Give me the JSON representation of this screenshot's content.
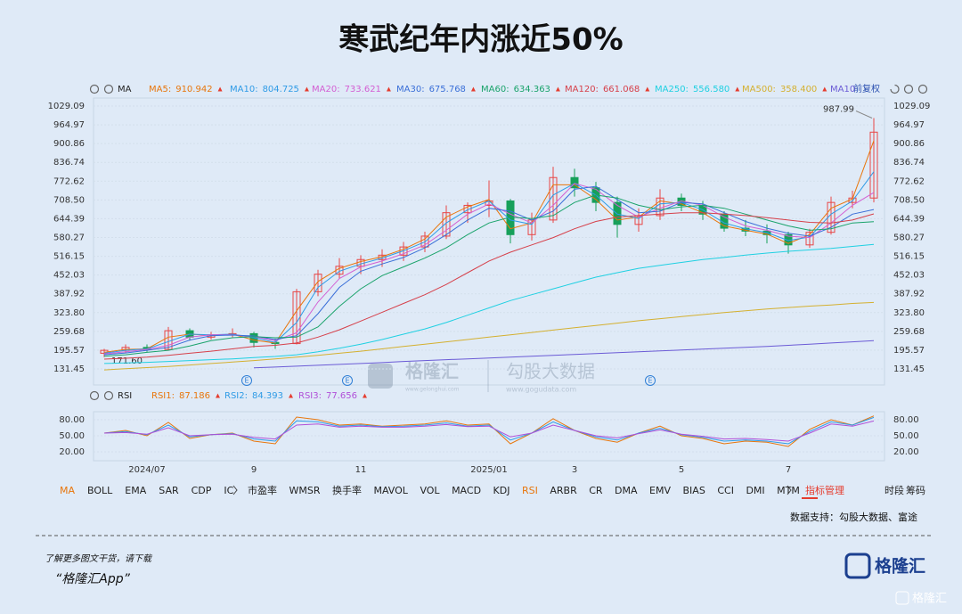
{
  "title": "寒武纪年内涨近50%",
  "restore_label": "前复权",
  "chart_data": [
    {
      "type": "candlestick",
      "legend_label": "MA",
      "up_color": "#e84545",
      "down_color": "#17a05a",
      "grid": true,
      "ylim": [
        76.7,
        1056.5
      ],
      "yticks": [
        1029.09,
        964.97,
        900.86,
        836.74,
        772.62,
        {
          "value": 708.5,
          "label": "708.50"
        },
        644.39,
        580.27,
        516.15,
        452.03,
        387.92,
        {
          "value": 323.8,
          "label": "323.80"
        },
        259.68,
        195.57,
        131.45
      ],
      "open": [
        185,
        195,
        205,
        198,
        262,
        240,
        248,
        252,
        222,
        218,
        395,
        455,
        482,
        505,
        520,
        548,
        585,
        665,
        690,
        705,
        590,
        640,
        785,
        750,
        700,
        625,
        655,
        715,
        690,
        660,
        612,
        602,
        590,
        555,
        598,
        700,
        715
      ],
      "high": [
        200,
        215,
        215,
        275,
        270,
        258,
        270,
        258,
        235,
        405,
        470,
        510,
        520,
        540,
        565,
        600,
        690,
        700,
        775,
        712,
        665,
        822,
        815,
        770,
        720,
        680,
        745,
        730,
        705,
        670,
        640,
        625,
        600,
        610,
        720,
        740,
        987.99
      ],
      "low": [
        171.6,
        185,
        190,
        195,
        228,
        232,
        240,
        205,
        200,
        215,
        380,
        440,
        455,
        480,
        500,
        530,
        575,
        630,
        650,
        560,
        570,
        630,
        720,
        670,
        580,
        600,
        640,
        670,
        640,
        600,
        585,
        560,
        525,
        545,
        590,
        680,
        700
      ],
      "close": [
        195,
        205,
        198,
        262,
        240,
        248,
        252,
        222,
        218,
        395,
        455,
        482,
        505,
        520,
        548,
        585,
        665,
        690,
        705,
        590,
        640,
        785,
        750,
        700,
        625,
        655,
        715,
        690,
        660,
        612,
        602,
        590,
        555,
        598,
        700,
        715,
        940
      ],
      "high_label": "987.99",
      "low_label": "171.60",
      "event_label": "E",
      "series": [
        {
          "name": "MA5:",
          "legend_value": 910.942,
          "color": "#e8760c",
          "values": [
            188,
            198,
            200,
            240,
            250,
            246,
            250,
            230,
            220,
            330,
            430,
            475,
            498,
            515,
            540,
            575,
            650,
            685,
            710,
            610,
            630,
            760,
            760,
            710,
            640,
            650,
            705,
            695,
            665,
            620,
            605,
            592,
            560,
            590,
            680,
            712,
            910.942
          ]
        },
        {
          "name": "MA10:",
          "legend_value": 804.725,
          "color": "#2f9be6",
          "values": [
            185,
            195,
            200,
            225,
            250,
            248,
            250,
            238,
            222,
            290,
            410,
            465,
            490,
            510,
            535,
            565,
            630,
            675,
            705,
            640,
            625,
            725,
            765,
            725,
            660,
            645,
            695,
            700,
            675,
            630,
            610,
            597,
            570,
            582,
            660,
            705,
            804.725
          ]
        },
        {
          "name": "MA20:",
          "legend_value": 733.621,
          "color": "#d35fd3",
          "values": [
            183,
            190,
            198,
            212,
            240,
            248,
            248,
            242,
            228,
            255,
            360,
            440,
            480,
            500,
            525,
            555,
            605,
            660,
            695,
            660,
            630,
            690,
            765,
            745,
            690,
            650,
            680,
            705,
            690,
            650,
            620,
            605,
            585,
            580,
            630,
            690,
            733.621
          ]
        },
        {
          "name": "MA30:",
          "legend_value": 675.768,
          "color": "#3a6fd8",
          "values": [
            180,
            186,
            195,
            205,
            230,
            245,
            247,
            244,
            232,
            245,
            320,
            410,
            465,
            490,
            512,
            545,
            590,
            640,
            680,
            670,
            640,
            670,
            745,
            755,
            710,
            665,
            670,
            700,
            695,
            665,
            635,
            612,
            595,
            585,
            615,
            660,
            675.768
          ]
        },
        {
          "name": "MA60:",
          "legend_value": 634.363,
          "color": "#1aa36b",
          "values": [
            175,
            180,
            188,
            195,
            210,
            228,
            238,
            242,
            238,
            240,
            275,
            345,
            405,
            450,
            480,
            510,
            545,
            590,
            630,
            650,
            645,
            655,
            700,
            725,
            715,
            690,
            675,
            685,
            690,
            680,
            660,
            640,
            620,
            605,
            610,
            630,
            634.363
          ]
        },
        {
          "name": "MA120:",
          "legend_value": 661.068,
          "color": "#d6404a",
          "values": [
            165,
            168,
            172,
            178,
            185,
            192,
            200,
            208,
            212,
            220,
            240,
            265,
            295,
            325,
            355,
            385,
            420,
            460,
            500,
            530,
            555,
            580,
            610,
            635,
            650,
            655,
            660,
            665,
            665,
            660,
            655,
            648,
            640,
            632,
            630,
            640,
            661.068
          ]
        },
        {
          "name": "MA250:",
          "legend_value": {
            "value": 556.58,
            "label": "556.580"
          },
          "color": "#1fd0e2",
          "values": [
            150,
            152,
            154,
            157,
            160,
            163,
            166,
            170,
            174,
            180,
            190,
            202,
            216,
            232,
            250,
            268,
            290,
            315,
            340,
            365,
            385,
            405,
            425,
            445,
            460,
            475,
            485,
            495,
            505,
            512,
            520,
            527,
            533,
            538,
            543,
            550,
            556.58
          ]
        },
        {
          "name": "MA500:",
          "legend_value": {
            "value": 358.4,
            "label": "358.400"
          },
          "color": "#d4b030",
          "values": [
            128,
            132,
            136,
            140,
            145,
            150,
            155,
            160,
            166,
            172,
            178,
            185,
            192,
            200,
            208,
            216,
            224,
            232,
            240,
            248,
            256,
            264,
            272,
            280,
            288,
            296,
            303,
            310,
            317,
            324,
            330,
            336,
            341,
            346,
            350,
            355,
            358.4
          ]
        },
        {
          "name": "MA10",
          "color": "#6b5bd6",
          "values": [
            null,
            null,
            null,
            null,
            null,
            null,
            null,
            135,
            138,
            141,
            144,
            147,
            150,
            153,
            157,
            160,
            163,
            166,
            169,
            172,
            175,
            178,
            181,
            184,
            187,
            190,
            193,
            196,
            199,
            202,
            205,
            208,
            212,
            216,
            220,
            224,
            228
          ]
        }
      ]
    },
    {
      "type": "line",
      "legend_label": "RSI",
      "grid": true,
      "ylim": [
        3.3,
        95
      ],
      "yticks": [
        {
          "value": 80,
          "label": "80.00"
        },
        {
          "value": 50,
          "label": "50.00"
        },
        {
          "value": 20,
          "label": "20.00"
        }
      ],
      "categories": [
        null,
        null,
        "2024/07",
        null,
        null,
        null,
        null,
        "9",
        null,
        null,
        null,
        null,
        "11",
        null,
        null,
        null,
        null,
        null,
        "2025/01",
        null,
        null,
        null,
        "3",
        null,
        null,
        null,
        null,
        "5",
        null,
        null,
        null,
        null,
        "7",
        null,
        null,
        null,
        null
      ],
      "series": [
        {
          "name": "RSI1:",
          "color": "#e8760c",
          "values": [
            55,
            60,
            50,
            75,
            45,
            52,
            55,
            40,
            35,
            85,
            80,
            70,
            72,
            68,
            70,
            72,
            78,
            70,
            72,
            35,
            55,
            82,
            60,
            45,
            38,
            55,
            68,
            50,
            45,
            35,
            40,
            38,
            30,
            62,
            80,
            70,
            87.186
          ]
        },
        {
          "name": "RSI2:",
          "color": "#2f9be6",
          "values": [
            55,
            58,
            52,
            70,
            48,
            52,
            54,
            44,
            40,
            78,
            76,
            68,
            70,
            67,
            68,
            70,
            74,
            68,
            70,
            42,
            55,
            76,
            60,
            48,
            42,
            55,
            64,
            52,
            47,
            40,
            42,
            40,
            35,
            58,
            76,
            70,
            84.393
          ]
        },
        {
          "name": "RSI3:",
          "color": "#b04fd8",
          "values": [
            55,
            56,
            53,
            65,
            50,
            52,
            53,
            47,
            44,
            70,
            72,
            66,
            68,
            66,
            66,
            68,
            71,
            67,
            68,
            48,
            55,
            70,
            60,
            50,
            46,
            54,
            61,
            53,
            49,
            44,
            45,
            43,
            40,
            55,
            72,
            68,
            77.656
          ]
        }
      ]
    }
  ],
  "indicator_tabs": [
    [
      {
        "label": "MA",
        "active": true
      },
      {
        "label": "BOLL"
      },
      {
        "label": "EMA"
      },
      {
        "label": "SAR"
      },
      {
        "label": "CDP"
      },
      {
        "label": "IC"
      }
    ],
    [
      {
        "label": "市盈率"
      },
      {
        "label": "WMSR"
      },
      {
        "label": "换手率"
      },
      {
        "label": "MAVOL"
      },
      {
        "label": "VOL"
      },
      {
        "label": "MACD"
      },
      {
        "label": "KDJ"
      },
      {
        "label": "RSI",
        "active": true
      },
      {
        "label": "ARBR"
      },
      {
        "label": "CR"
      },
      {
        "label": "DMA"
      },
      {
        "label": "EMV"
      },
      {
        "label": "BIAS"
      },
      {
        "label": "CCI"
      },
      {
        "label": "DMI"
      },
      {
        "label": "MTM"
      }
    ]
  ],
  "manage_tab": "指标管理",
  "right_tabs": [
    "时段",
    "筹码"
  ],
  "source": "数据支持：勾股大数据、富途",
  "watermark": {
    "brand": "格隆汇",
    "brand_url": "www.gelonghui.com",
    "partner": "勾股大数据",
    "partner_url": "www.gogudata.com"
  },
  "footer": {
    "prompt": "了解更多图文干货，请下载",
    "app": "“格隆汇App”",
    "logo": "格隆汇",
    "corner": "格隆汇"
  }
}
